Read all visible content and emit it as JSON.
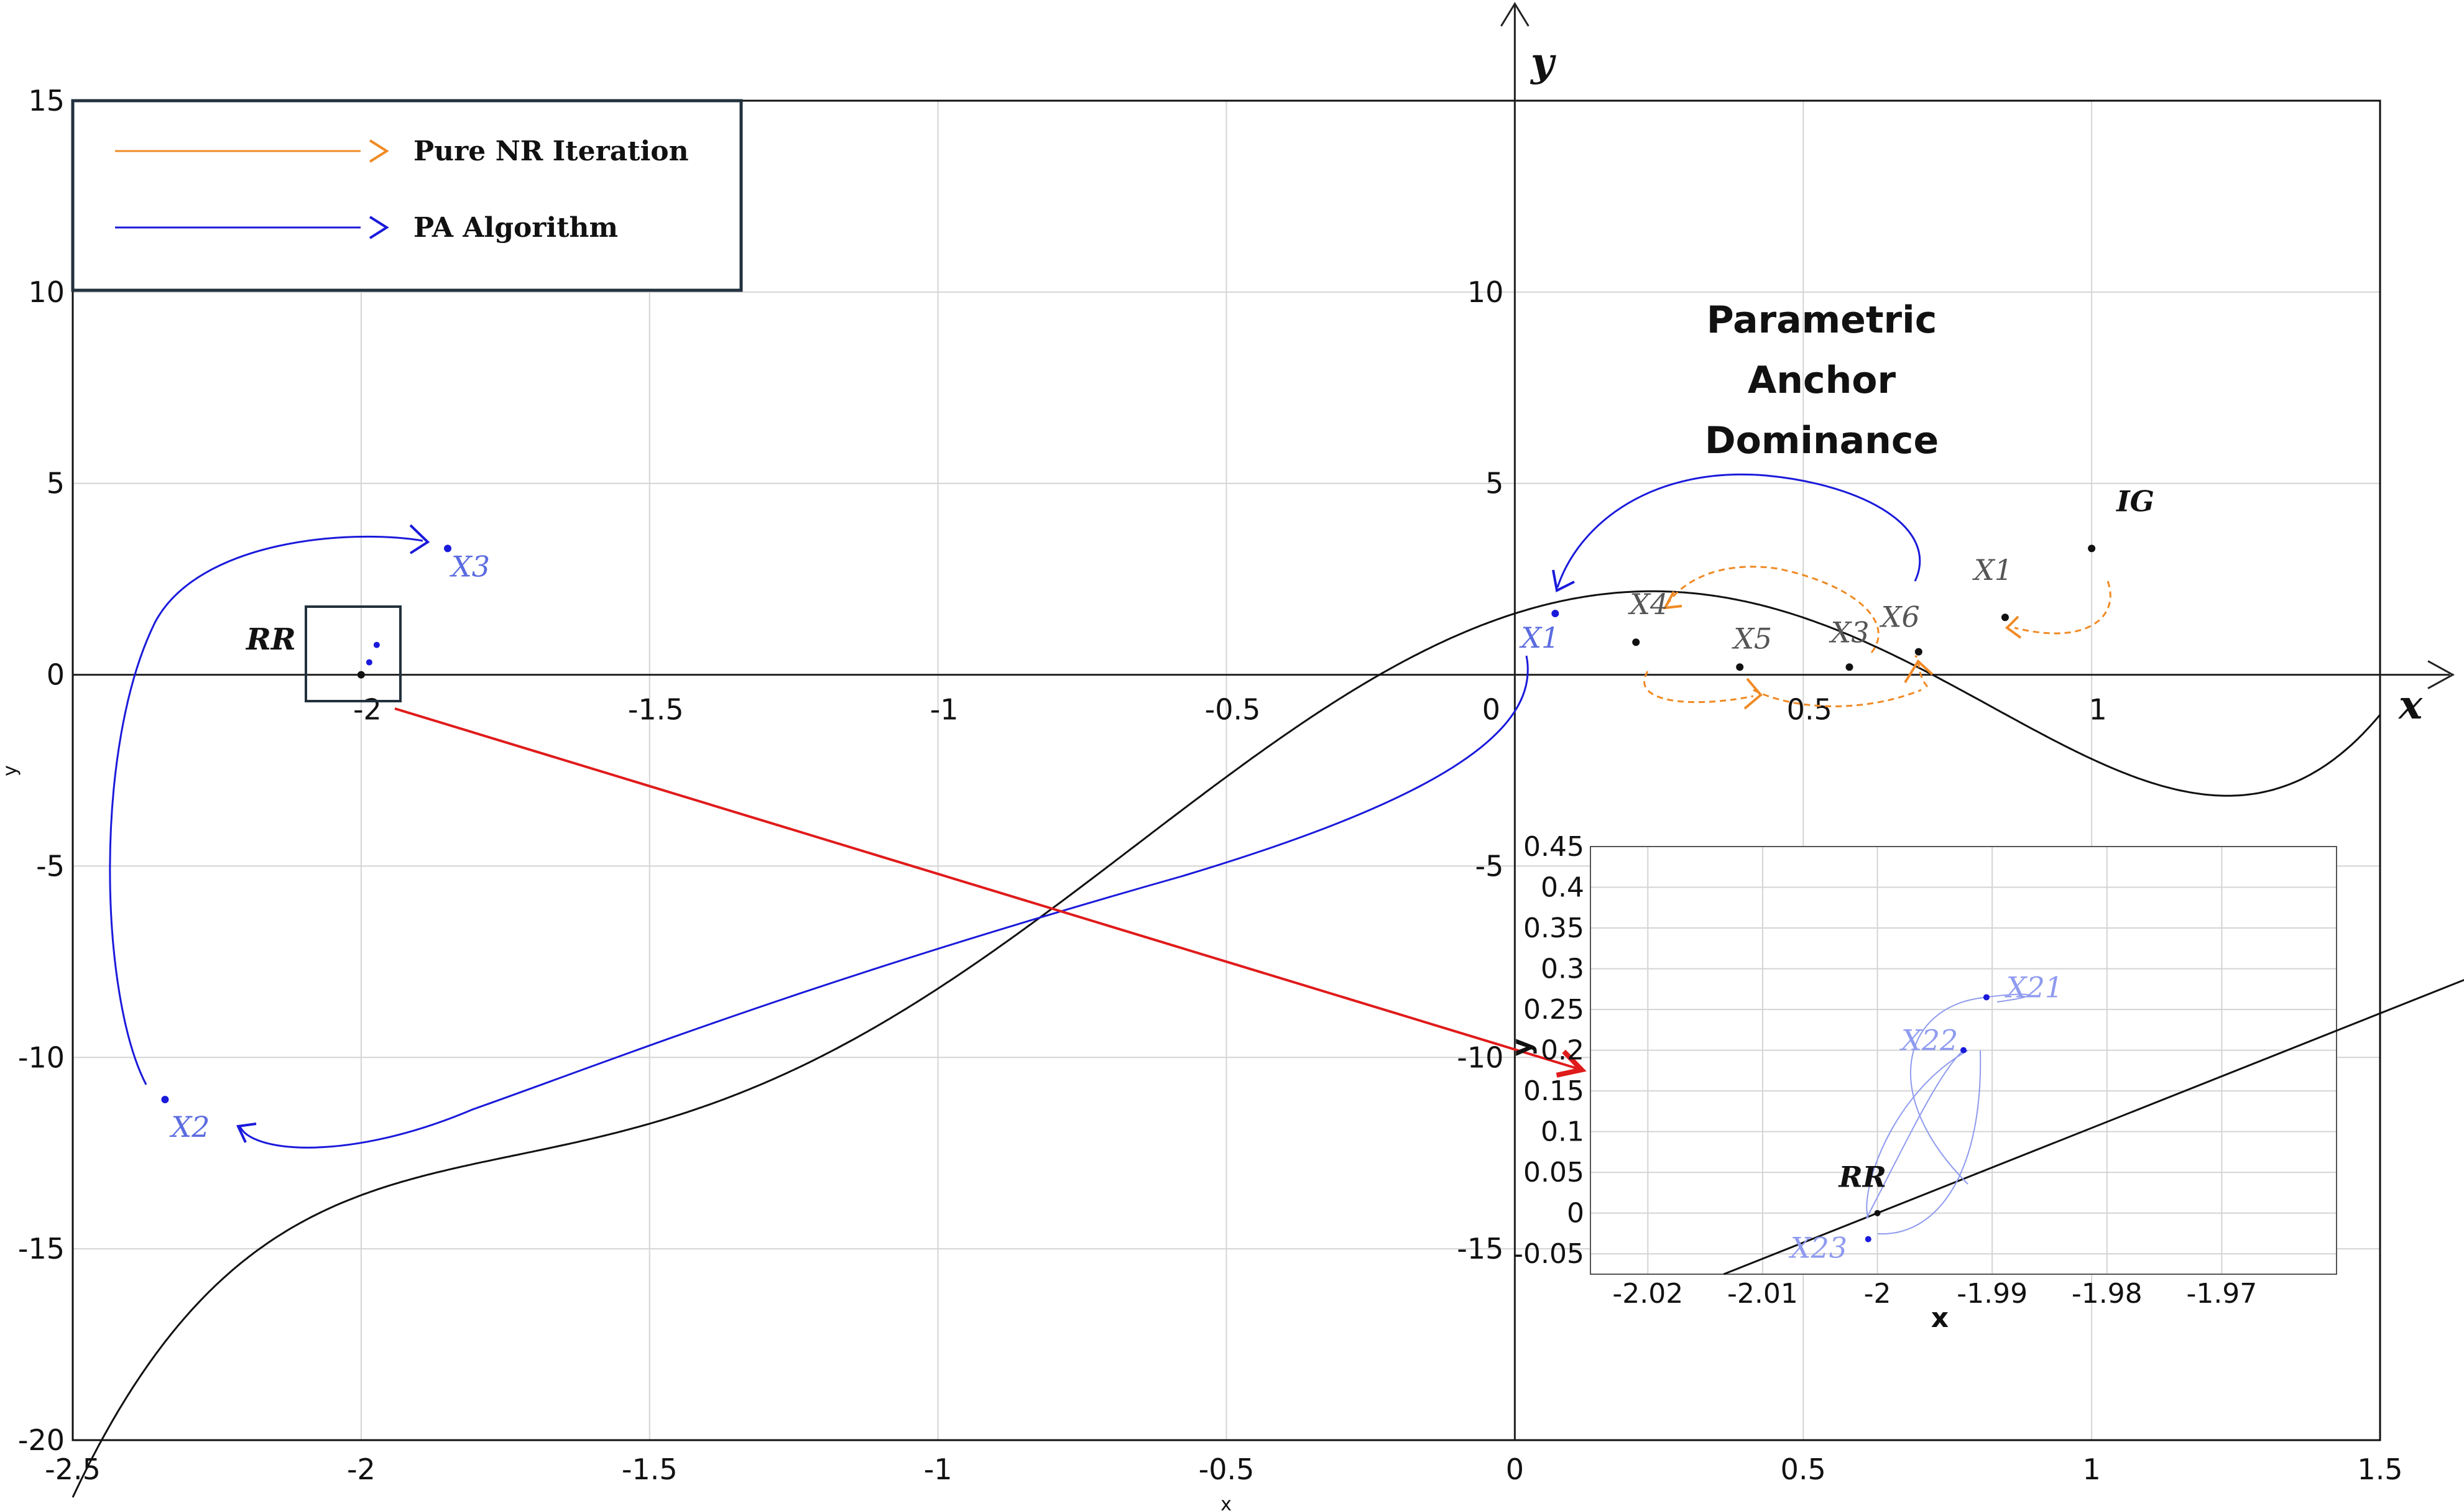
{
  "chart_data": [
    {
      "type": "line",
      "function": "y = x^5 + 2.6x^4 - 2.8x^3 - 9.4x^2 + 4.8x + 1.6",
      "x_range": [
        -2.5,
        1.5
      ],
      "y_range": [
        -20,
        15
      ],
      "xticks": [
        "-2.5",
        "-2",
        "-1.5",
        "-1",
        "-0.5",
        "0",
        "0.5",
        "1",
        "1.5"
      ],
      "yticks": [
        "15",
        "10",
        "5",
        "0",
        "-5",
        "-10",
        "-15",
        "-20"
      ],
      "inner_xticks": [
        "-2",
        "-1.5",
        "-1",
        "-0.5",
        "0",
        "0.5",
        "1"
      ],
      "inner_yticks": [
        "10",
        "5",
        "-5",
        "-10",
        "-15"
      ],
      "xlabel": "x",
      "ylabel": "y",
      "axis_x_label": "x",
      "axis_y_label": "y",
      "grid": true,
      "legend": {
        "placement": "top-left",
        "entries": [
          {
            "label": "Pure NR Iteration",
            "color": "#f08a24"
          },
          {
            "label": "PA Algorithm",
            "color": "#1a1adb"
          }
        ]
      },
      "annotation_title": [
        "Parametric",
        "Anchor",
        "Dominance"
      ],
      "nr_points": [
        {
          "label": "IG",
          "x": 1.0,
          "y": 3.3
        },
        {
          "label": "X1",
          "x": 0.85,
          "y": 1.5
        },
        {
          "label": "X6",
          "x": 0.7,
          "y": 0.6
        },
        {
          "label": "X3",
          "x": 0.58,
          "y": 0.2
        },
        {
          "label": "X5",
          "x": 0.39,
          "y": 0.2
        },
        {
          "label": "X4",
          "x": 0.21,
          "y": 0.85
        }
      ],
      "pa_points": [
        {
          "label": "X1",
          "x": 0.07,
          "y": 1.6
        },
        {
          "label": "X2",
          "x": -2.34,
          "y": -11.1
        },
        {
          "label": "X3",
          "x": -1.85,
          "y": 3.3
        }
      ],
      "root_label": "RR",
      "root": {
        "x": -2.0,
        "y": 0.0
      }
    },
    {
      "type": "line",
      "title": "",
      "x_range": [
        -2.025,
        -1.96
      ],
      "y_range": [
        -0.075,
        0.45
      ],
      "xticks": [
        "-2.02",
        "-2.01",
        "-2",
        "-1.99",
        "-1.98",
        "-1.97"
      ],
      "yticks": [
        "0.45",
        "0.4",
        "0.35",
        "0.3",
        "0.25",
        "0.2",
        "0.15",
        "0.1",
        "0.05",
        "0",
        "-0.05"
      ],
      "xlabel": "x",
      "ylabel": "y",
      "grid": true,
      "points": [
        {
          "label": "X21",
          "x": -1.9905,
          "y": 0.265
        },
        {
          "label": "X22",
          "x": -1.9925,
          "y": 0.2
        },
        {
          "label": "X23",
          "x": -2.0008,
          "y": -0.032
        },
        {
          "label": "RR",
          "x": -2.0,
          "y": 0.0
        }
      ]
    }
  ],
  "colors": {
    "curve": "#111111",
    "nr": "#f08a24",
    "pa": "#1a1adb",
    "pa_label": "#5b6be0",
    "zoom_arrow": "#e01b1b",
    "grid": "#d4d4d4"
  }
}
